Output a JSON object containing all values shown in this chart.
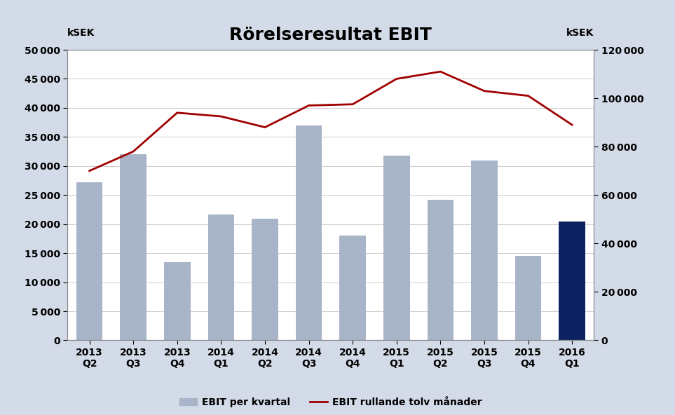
{
  "title": "Rörelseresultat EBIT",
  "categories": [
    "2013\nQ2",
    "2013\nQ3",
    "2013\nQ4",
    "2014\nQ1",
    "2014\nQ2",
    "2014\nQ3",
    "2014\nQ4",
    "2015\nQ1",
    "2015\nQ2",
    "2015\nQ3",
    "2015\nQ4",
    "2016\nQ1"
  ],
  "bar_values": [
    27200,
    32000,
    13500,
    21600,
    20900,
    37000,
    18000,
    31800,
    24200,
    31000,
    14500,
    20500
  ],
  "bar_colors": [
    "#a8b4c8",
    "#a8b4c8",
    "#a8b4c8",
    "#a8b4c8",
    "#a8b4c8",
    "#a8b4c8",
    "#a8b4c8",
    "#a8b4c8",
    "#a8b4c8",
    "#a8b4c8",
    "#a8b4c8",
    "#0d2260"
  ],
  "line_values": [
    70000,
    78000,
    94000,
    92500,
    88000,
    97000,
    97500,
    108000,
    111000,
    103000,
    101000,
    89000
  ],
  "line_color": "#a00000",
  "left_ylim": [
    0,
    50000
  ],
  "right_ylim": [
    0,
    120000
  ],
  "left_yticks": [
    0,
    5000,
    10000,
    15000,
    20000,
    25000,
    30000,
    35000,
    40000,
    45000,
    50000
  ],
  "right_yticks": [
    0,
    20000,
    40000,
    60000,
    80000,
    100000,
    120000
  ],
  "legend_bar_label": "EBIT per kvartal",
  "legend_line_label": "EBIT rullande tolv månader",
  "background_color": "#d4dbe8",
  "plot_background": "#ffffff",
  "title_fontsize": 18,
  "tick_fontsize": 10,
  "ksek_fontsize": 10
}
